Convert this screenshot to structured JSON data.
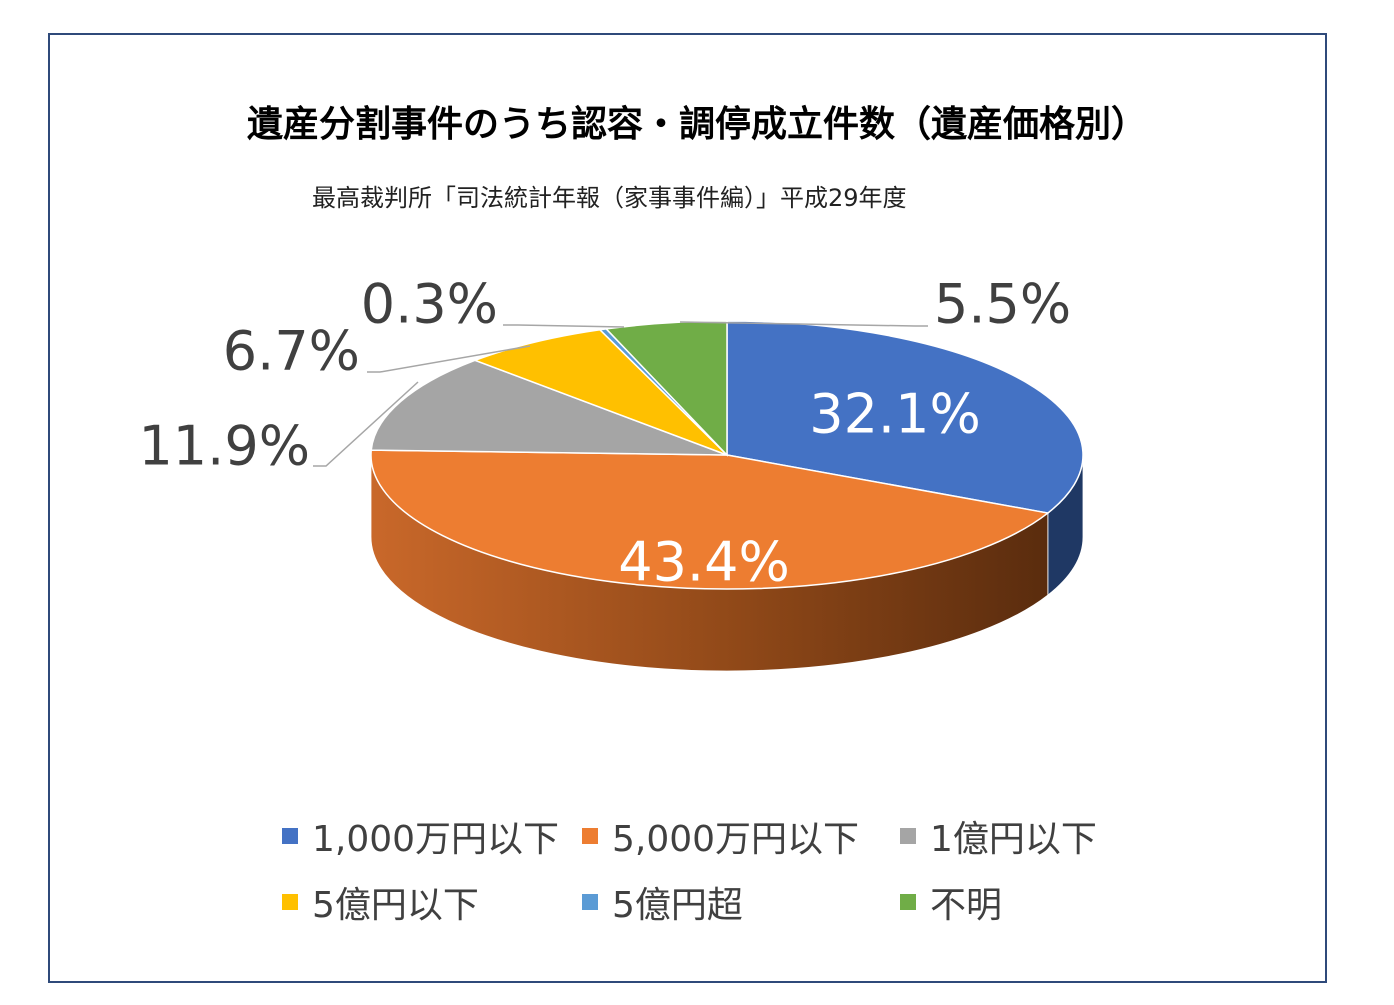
{
  "title": "遺産分割事件のうち認容・調停成立件数（遺産価格別）",
  "subtitle": "最高裁判所「司法統計年報（家事事件編）」平成29年度",
  "chart_data": {
    "type": "pie",
    "title": "遺産分割事件のうち認容・調停成立件数（遺産価格別）",
    "subtitle": "最高裁判所「司法統計年報（家事事件編）」平成29年度",
    "legend_position": "bottom",
    "style": "3d",
    "categories": [
      "1,000万円以下",
      "5,000万円以下",
      "1億円以下",
      "5億円以下",
      "5億円超",
      "不明"
    ],
    "values": [
      32.1,
      43.4,
      11.9,
      6.7,
      0.3,
      5.5
    ],
    "labels": [
      "32.1%",
      "43.4%",
      "11.9%",
      "6.7%",
      "0.3%",
      "5.5%"
    ],
    "colors": [
      "#4472c4",
      "#ed7d31",
      "#a5a5a5",
      "#ffc000",
      "#5b9bd5",
      "#70ad47"
    ]
  }
}
